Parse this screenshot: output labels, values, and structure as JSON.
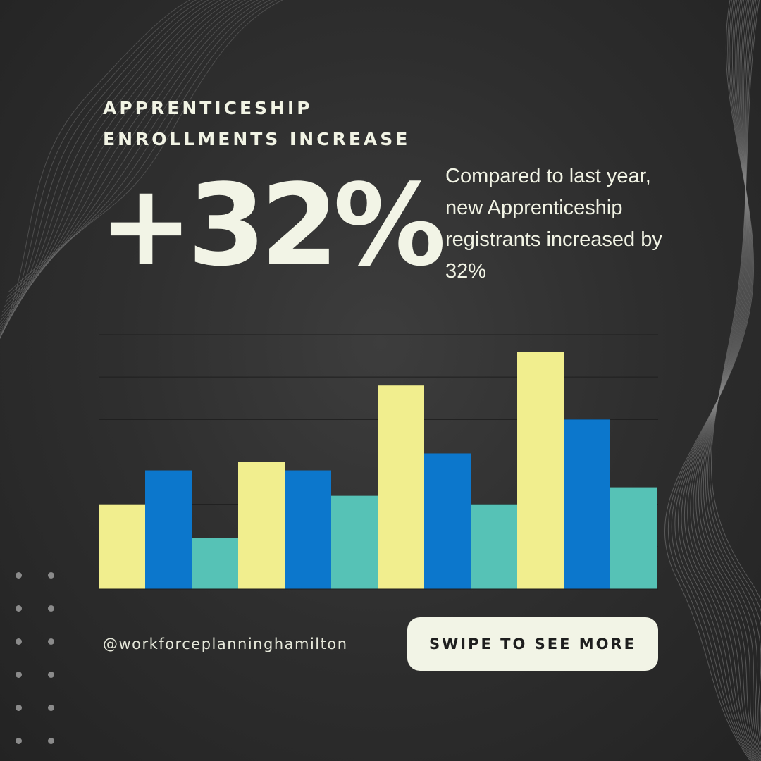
{
  "heading": {
    "line1": "APPRENTICESHIP",
    "line2": "ENROLLMENTS INCREASE"
  },
  "stat": {
    "value": "+32%"
  },
  "description": "Compared to last year, new Apprenticeship registrants increased by 32%",
  "handle": "@workforceplanninghamilton",
  "cta": {
    "label": "SWIPE TO SEE MORE"
  },
  "chart_data": {
    "type": "bar",
    "grid": true,
    "legend": "none",
    "ylim": [
      0,
      6
    ],
    "gridlines": [
      1,
      2,
      3,
      4,
      5,
      6
    ],
    "categories": [
      "",
      "",
      "",
      ""
    ],
    "series": [
      {
        "color": "#f1ee8e",
        "values": [
          2.0,
          3.0,
          4.8,
          5.6
        ]
      },
      {
        "color": "#0c77cc",
        "values": [
          2.8,
          2.8,
          3.2,
          4.0
        ]
      },
      {
        "color": "#56c2b6",
        "values": [
          1.2,
          2.2,
          2.0,
          2.4
        ]
      }
    ]
  },
  "colors": {
    "text": "#f1f3e4",
    "background": "#2e2e2e",
    "button_bg": "#f2f4e6",
    "button_text": "#1e1e1e"
  }
}
